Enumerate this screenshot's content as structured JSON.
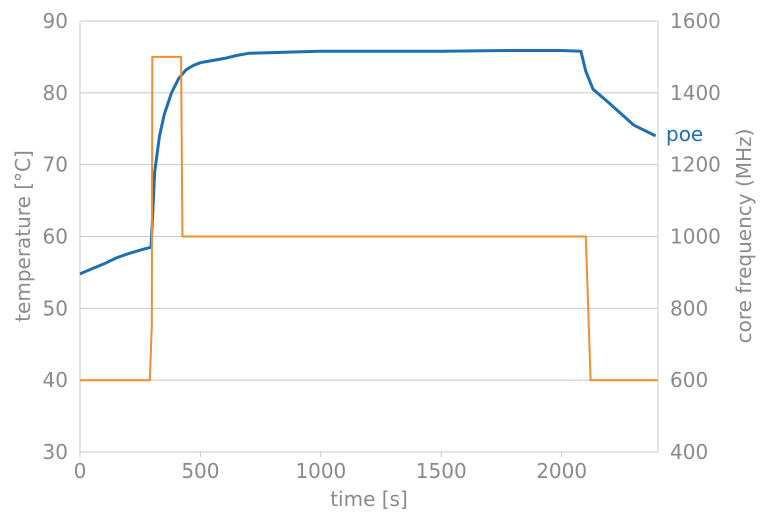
{
  "chart_data": {
    "type": "line",
    "title": "",
    "xlabel": "time [s]",
    "ylabel_left": "temperature [°C]",
    "ylabel_right": "core frequency (MHz)",
    "xlim": [
      0,
      2400
    ],
    "ylim_left": [
      30,
      90
    ],
    "ylim_right": [
      400,
      1600
    ],
    "x_ticks": [
      0,
      500,
      1000,
      1500,
      2000
    ],
    "y_ticks_left": [
      30,
      40,
      50,
      60,
      70,
      80,
      90
    ],
    "y_ticks_right": [
      400,
      600,
      800,
      1000,
      1200,
      1400,
      1600
    ],
    "grid": "horizontal",
    "series": [
      {
        "name": "poe",
        "axis": "left",
        "color": "#1f6fb0",
        "x": [
          0,
          50,
          100,
          150,
          200,
          260,
          295,
          300,
          310,
          330,
          350,
          380,
          410,
          440,
          470,
          500,
          550,
          600,
          650,
          700,
          800,
          900,
          1000,
          1200,
          1500,
          1800,
          2000,
          2080,
          2100,
          2130,
          2200,
          2300,
          2390
        ],
        "y": [
          54.8,
          55.5,
          56.2,
          57,
          57.6,
          58.2,
          58.5,
          62,
          69,
          74,
          77,
          80,
          82,
          83.2,
          83.8,
          84.2,
          84.5,
          84.8,
          85.2,
          85.5,
          85.6,
          85.7,
          85.8,
          85.8,
          85.8,
          85.9,
          85.9,
          85.8,
          83,
          80.5,
          78.5,
          75.5,
          74
        ]
      },
      {
        "name": "",
        "axis": "right",
        "color": "#f28e2b",
        "x": [
          0,
          290,
          298,
          300,
          420,
          425,
          505,
          510,
          680,
          700,
          750,
          2100,
          2120,
          2400
        ],
        "y": [
          600,
          600,
          750,
          1500,
          1500,
          1000,
          1000,
          1000,
          1000,
          1000,
          1000,
          1000,
          600,
          600
        ]
      }
    ]
  }
}
